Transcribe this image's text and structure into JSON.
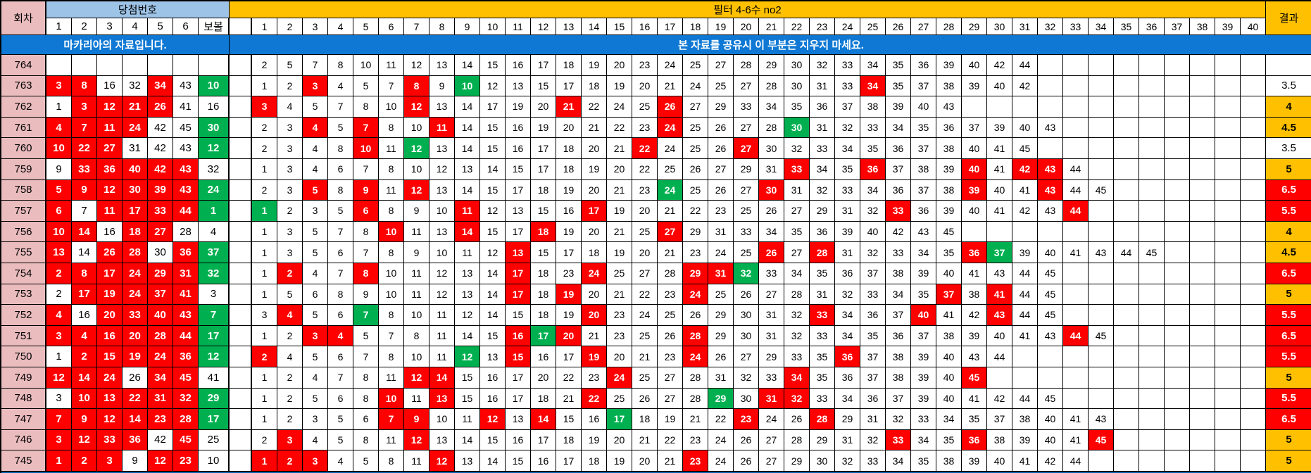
{
  "colors": {
    "highlight_red": "#fe0000",
    "highlight_green": "#00b050",
    "gold": "#ffc000",
    "round_pink": "#eabcbe",
    "header_light_blue": "#9dc3e6",
    "banner_blue": "#0e78d4"
  },
  "header": {
    "round_label": "회차",
    "winning_label": "당첨번호",
    "win_cols": [
      "1",
      "2",
      "3",
      "4",
      "5",
      "6"
    ],
    "bonus_label": "보볼",
    "filter_label": "필터 4-6수 no2",
    "filter_cols": [
      "1",
      "2",
      "3",
      "4",
      "5",
      "6",
      "7",
      "8",
      "9",
      "10",
      "11",
      "12",
      "13",
      "14",
      "15",
      "16",
      "17",
      "18",
      "19",
      "20",
      "21",
      "22",
      "23",
      "24",
      "25",
      "26",
      "27",
      "28",
      "29",
      "30",
      "31",
      "32",
      "33",
      "34",
      "35",
      "36",
      "37",
      "38",
      "39",
      "40"
    ],
    "result_label": "결과"
  },
  "banners": {
    "left": "마카리아의 자료입니다.",
    "right": "본 자료를 공유시 이 부분은 지우지 마세요."
  },
  "rows": [
    {
      "round": 764,
      "win": [],
      "bonus": null,
      "filter": [
        2,
        5,
        7,
        8,
        10,
        11,
        12,
        13,
        14,
        15,
        16,
        17,
        18,
        19,
        20,
        23,
        24,
        25,
        27,
        28,
        29,
        30,
        32,
        33,
        34,
        35,
        36,
        39,
        40,
        42,
        44
      ],
      "result": "",
      "result_color": "white"
    },
    {
      "round": 763,
      "win": [
        3,
        8,
        16,
        32,
        34,
        43
      ],
      "bonus": 10,
      "filter": [
        1,
        2,
        3,
        4,
        5,
        7,
        8,
        9,
        10,
        12,
        13,
        15,
        17,
        18,
        19,
        20,
        21,
        24,
        25,
        27,
        28,
        30,
        31,
        33,
        34,
        35,
        37,
        38,
        39,
        40,
        42
      ],
      "result": "3.5",
      "result_color": "white"
    },
    {
      "round": 762,
      "win": [
        1,
        3,
        12,
        21,
        26,
        41
      ],
      "bonus": 16,
      "filter": [
        3,
        4,
        5,
        7,
        8,
        10,
        12,
        13,
        14,
        17,
        19,
        20,
        21,
        22,
        24,
        25,
        26,
        27,
        29,
        33,
        34,
        35,
        36,
        37,
        38,
        39,
        40,
        43
      ],
      "result": "4",
      "result_color": "gold"
    },
    {
      "round": 761,
      "win": [
        4,
        7,
        11,
        24,
        42,
        45
      ],
      "bonus": 30,
      "filter": [
        2,
        3,
        4,
        5,
        7,
        8,
        10,
        11,
        14,
        15,
        16,
        19,
        20,
        21,
        22,
        23,
        24,
        25,
        26,
        27,
        28,
        30,
        31,
        32,
        33,
        34,
        35,
        36,
        37,
        39,
        40,
        43
      ],
      "result": "4.5",
      "result_color": "gold"
    },
    {
      "round": 760,
      "win": [
        10,
        22,
        27,
        31,
        42,
        43
      ],
      "bonus": 12,
      "filter": [
        2,
        3,
        4,
        8,
        10,
        11,
        12,
        13,
        14,
        15,
        16,
        17,
        18,
        20,
        21,
        22,
        24,
        25,
        26,
        27,
        30,
        32,
        33,
        34,
        35,
        36,
        37,
        38,
        40,
        41,
        45
      ],
      "result": "3.5",
      "result_color": "white"
    },
    {
      "round": 759,
      "win": [
        9,
        33,
        36,
        40,
        42,
        43
      ],
      "bonus": 32,
      "filter": [
        1,
        3,
        4,
        6,
        7,
        8,
        10,
        12,
        13,
        14,
        15,
        17,
        18,
        19,
        20,
        22,
        25,
        26,
        27,
        29,
        31,
        33,
        34,
        35,
        36,
        37,
        38,
        39,
        40,
        41,
        42,
        43,
        44
      ],
      "result": "5",
      "result_color": "gold"
    },
    {
      "round": 758,
      "win": [
        5,
        9,
        12,
        30,
        39,
        43
      ],
      "bonus": 24,
      "filter": [
        2,
        3,
        5,
        8,
        9,
        11,
        12,
        13,
        14,
        15,
        17,
        18,
        19,
        20,
        21,
        23,
        24,
        25,
        26,
        27,
        30,
        31,
        32,
        33,
        34,
        36,
        37,
        38,
        39,
        40,
        41,
        43,
        44,
        45
      ],
      "result": "6.5",
      "result_color": "red"
    },
    {
      "round": 757,
      "win": [
        6,
        7,
        11,
        17,
        33,
        44
      ],
      "bonus": 1,
      "filter": [
        1,
        2,
        3,
        5,
        6,
        8,
        9,
        10,
        11,
        12,
        13,
        15,
        16,
        17,
        19,
        20,
        21,
        22,
        23,
        25,
        26,
        27,
        29,
        31,
        32,
        33,
        36,
        39,
        40,
        41,
        42,
        43,
        44
      ],
      "result": "5.5",
      "result_color": "red"
    },
    {
      "round": 756,
      "win": [
        10,
        14,
        16,
        18,
        27,
        28
      ],
      "bonus": 4,
      "filter": [
        1,
        3,
        5,
        7,
        8,
        10,
        11,
        13,
        14,
        15,
        17,
        18,
        19,
        20,
        21,
        25,
        27,
        29,
        31,
        33,
        34,
        35,
        36,
        39,
        40,
        42,
        43,
        45
      ],
      "result": "4",
      "result_color": "gold"
    },
    {
      "round": 755,
      "win": [
        13,
        14,
        26,
        28,
        30,
        36
      ],
      "bonus": 37,
      "filter": [
        1,
        3,
        5,
        6,
        7,
        8,
        9,
        10,
        11,
        12,
        13,
        15,
        17,
        18,
        19,
        20,
        21,
        23,
        24,
        25,
        26,
        27,
        28,
        31,
        32,
        33,
        34,
        35,
        36,
        37,
        39,
        40,
        41,
        43,
        44,
        45
      ],
      "result": "4.5",
      "result_color": "gold"
    },
    {
      "round": 754,
      "win": [
        2,
        8,
        17,
        24,
        29,
        31
      ],
      "bonus": 32,
      "filter": [
        1,
        2,
        4,
        7,
        8,
        10,
        11,
        12,
        13,
        14,
        17,
        18,
        23,
        24,
        25,
        27,
        28,
        29,
        31,
        32,
        33,
        34,
        35,
        36,
        37,
        38,
        39,
        40,
        41,
        43,
        44,
        45
      ],
      "result": "6.5",
      "result_color": "red"
    },
    {
      "round": 753,
      "win": [
        2,
        17,
        19,
        24,
        37,
        41
      ],
      "bonus": 3,
      "filter": [
        1,
        5,
        6,
        8,
        9,
        10,
        11,
        12,
        13,
        14,
        17,
        18,
        19,
        20,
        21,
        22,
        23,
        24,
        25,
        26,
        27,
        28,
        31,
        32,
        33,
        34,
        35,
        37,
        38,
        41,
        44,
        45
      ],
      "result": "5",
      "result_color": "gold"
    },
    {
      "round": 752,
      "win": [
        4,
        16,
        20,
        33,
        40,
        43
      ],
      "bonus": 7,
      "filter": [
        3,
        4,
        5,
        6,
        7,
        8,
        10,
        11,
        12,
        14,
        15,
        18,
        19,
        20,
        23,
        24,
        25,
        26,
        29,
        30,
        31,
        32,
        33,
        34,
        36,
        37,
        40,
        41,
        42,
        43,
        44,
        45
      ],
      "result": "5.5",
      "result_color": "red"
    },
    {
      "round": 751,
      "win": [
        3,
        4,
        16,
        20,
        28,
        44
      ],
      "bonus": 17,
      "filter": [
        1,
        2,
        3,
        4,
        5,
        7,
        8,
        11,
        14,
        15,
        16,
        17,
        20,
        21,
        23,
        25,
        26,
        28,
        29,
        30,
        31,
        32,
        33,
        34,
        35,
        36,
        37,
        38,
        39,
        40,
        41,
        43,
        44,
        45
      ],
      "result": "6.5",
      "result_color": "red"
    },
    {
      "round": 750,
      "win": [
        1,
        2,
        15,
        19,
        24,
        36
      ],
      "bonus": 12,
      "filter": [
        2,
        4,
        5,
        6,
        7,
        8,
        10,
        11,
        12,
        13,
        15,
        16,
        17,
        19,
        20,
        21,
        23,
        24,
        26,
        27,
        29,
        33,
        35,
        36,
        37,
        38,
        39,
        40,
        43,
        44
      ],
      "result": "5.5",
      "result_color": "red"
    },
    {
      "round": 749,
      "win": [
        12,
        14,
        24,
        26,
        34,
        45
      ],
      "bonus": 41,
      "filter": [
        1,
        2,
        4,
        7,
        8,
        11,
        12,
        14,
        15,
        16,
        17,
        20,
        22,
        23,
        24,
        25,
        27,
        28,
        31,
        32,
        33,
        34,
        35,
        36,
        37,
        38,
        39,
        40,
        45
      ],
      "result": "5",
      "result_color": "gold"
    },
    {
      "round": 748,
      "win": [
        3,
        10,
        13,
        22,
        31,
        32
      ],
      "bonus": 29,
      "filter": [
        1,
        2,
        5,
        6,
        8,
        10,
        11,
        13,
        15,
        16,
        17,
        18,
        21,
        22,
        25,
        26,
        27,
        28,
        29,
        30,
        31,
        32,
        33,
        34,
        36,
        37,
        39,
        40,
        41,
        42,
        44,
        45
      ],
      "result": "5.5",
      "result_color": "red"
    },
    {
      "round": 747,
      "win": [
        7,
        9,
        12,
        14,
        23,
        28
      ],
      "bonus": 17,
      "filter": [
        1,
        2,
        3,
        5,
        6,
        7,
        9,
        10,
        11,
        12,
        13,
        14,
        15,
        16,
        17,
        18,
        19,
        21,
        22,
        23,
        24,
        26,
        28,
        29,
        31,
        32,
        33,
        34,
        35,
        37,
        38,
        40,
        41,
        43
      ],
      "result": "6.5",
      "result_color": "red"
    },
    {
      "round": 746,
      "win": [
        3,
        12,
        33,
        36,
        42,
        45
      ],
      "bonus": 25,
      "filter": [
        2,
        3,
        4,
        5,
        8,
        11,
        12,
        13,
        14,
        15,
        16,
        17,
        18,
        19,
        20,
        21,
        22,
        23,
        24,
        26,
        27,
        28,
        29,
        31,
        32,
        33,
        34,
        35,
        36,
        38,
        39,
        40,
        41,
        45
      ],
      "result": "5",
      "result_color": "gold"
    },
    {
      "round": 745,
      "win": [
        1,
        2,
        3,
        9,
        12,
        23
      ],
      "bonus": 10,
      "filter": [
        1,
        2,
        3,
        4,
        5,
        8,
        11,
        12,
        13,
        14,
        15,
        16,
        17,
        18,
        19,
        20,
        21,
        23,
        24,
        26,
        27,
        29,
        30,
        32,
        33,
        34,
        35,
        38,
        39,
        40,
        41,
        42,
        44
      ],
      "result": "5",
      "result_color": "gold"
    }
  ]
}
